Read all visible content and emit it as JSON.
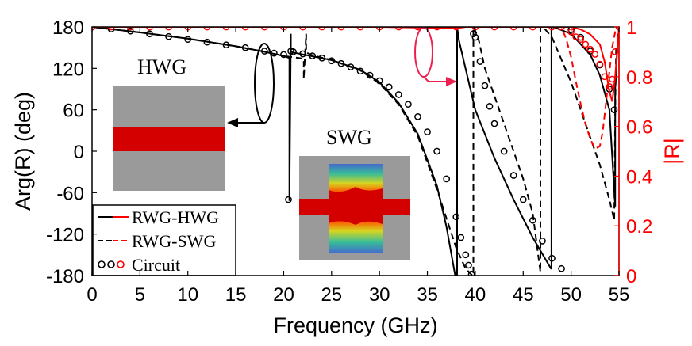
{
  "chart_data": {
    "type": "line",
    "xlabel": "Frequency (GHz)",
    "ylabel_left": "Arg(R) (deg)",
    "ylabel_right": "|R|",
    "xlim": [
      0,
      55
    ],
    "ylim_left": [
      -180,
      180
    ],
    "ylim_right": [
      0,
      1
    ],
    "x_ticks": [
      "0",
      "5",
      "10",
      "15",
      "20",
      "25",
      "30",
      "35",
      "40",
      "45",
      "50",
      "55"
    ],
    "y_ticks_left": [
      "180",
      "120",
      "60",
      "0",
      "-60",
      "-120",
      "-180"
    ],
    "y_ticks_right": [
      "1",
      "0.8",
      "0.6",
      "0.4",
      "0.2",
      "0"
    ],
    "colors": {
      "phase": "#000000",
      "magnitude": "#ff0000",
      "inset_metal": "#9a9a9a",
      "inset_dielectric": "#d40000"
    },
    "legend": [
      {
        "label": "RWG-HWG",
        "style": "solid"
      },
      {
        "label": "RWG-SWG",
        "style": "dashed"
      },
      {
        "label": "Circuit",
        "style": "circles"
      }
    ],
    "annotations": {
      "hwg": "HWG",
      "swg": "SWG"
    },
    "series": [
      {
        "name": "RWG-HWG",
        "axis": "left",
        "style": "solid",
        "color": "#000000",
        "x": [
          0,
          5,
          10,
          15,
          18,
          20,
          20.6,
          20.6,
          20.75,
          20.75,
          21,
          25,
          28,
          30,
          32,
          34,
          36,
          37,
          37.9,
          38.1,
          38.1,
          38.3,
          40,
          42,
          44,
          46,
          47.9,
          47.95,
          47.95,
          48.5,
          50,
          52,
          53,
          54,
          54.6,
          54.6,
          54.9
        ],
        "y": [
          180,
          172,
          163,
          152,
          144,
          138,
          135,
          -72,
          170,
          144,
          143,
          132,
          118,
          100,
          70,
          25,
          -50,
          -110,
          -180,
          -180,
          180,
          160,
          60,
          -10,
          -70,
          -125,
          -170,
          -170,
          180,
          178,
          170,
          140,
          110,
          60,
          -80,
          90,
          170
        ]
      },
      {
        "name": "RWG-SWG",
        "axis": "left",
        "style": "dashed",
        "color": "#000000",
        "x": [
          0,
          5,
          10,
          15,
          18,
          20,
          22.1,
          22.1,
          22.35,
          22.35,
          23,
          25,
          28,
          30,
          32,
          34,
          36,
          38,
          39,
          39.7,
          39.8,
          39.8,
          40.3,
          41,
          43,
          45,
          46,
          46.8,
          46.8,
          47.2,
          48,
          50,
          52,
          53,
          54,
          54.5,
          54.6,
          54.7
        ],
        "y": [
          180,
          172,
          163,
          152,
          144,
          138,
          134,
          105,
          170,
          143,
          139,
          132,
          117,
          98,
          68,
          22,
          -55,
          -140,
          -170,
          -180,
          -180,
          180,
          165,
          120,
          40,
          -40,
          -90,
          -175,
          180,
          178,
          165,
          100,
          20,
          -20,
          -70,
          -100,
          60,
          150
        ]
      },
      {
        "name": "Circuit (phase)",
        "axis": "left",
        "style": "circles",
        "color": "#000000",
        "x": [
          0,
          2,
          4,
          6,
          8,
          10,
          12,
          14,
          16,
          18,
          19,
          20,
          20.5,
          20.75,
          21,
          22,
          23,
          24,
          25,
          26,
          27,
          28,
          29,
          30,
          31,
          32,
          33,
          34,
          35,
          36,
          37,
          38,
          38.5,
          39,
          39.3,
          39.6,
          39.8,
          40,
          40.5,
          41,
          41.5,
          42,
          43,
          44,
          45,
          46,
          47,
          48,
          49,
          50,
          51,
          52,
          53,
          54,
          54.5
        ],
        "y": [
          180,
          177,
          174,
          170,
          166,
          162,
          158,
          154,
          150,
          145,
          142,
          140,
          -70,
          145,
          144,
          141,
          138,
          135,
          131,
          127,
          122,
          116,
          110,
          102,
          93,
          82,
          68,
          50,
          28,
          0,
          -40,
          -95,
          -125,
          -150,
          -165,
          -178,
          170,
          165,
          130,
          95,
          65,
          40,
          0,
          -35,
          -70,
          -100,
          -130,
          -155,
          -170,
          176,
          165,
          145,
          125,
          90,
          60
        ]
      },
      {
        "name": "RWG-HWG |R|",
        "axis": "right",
        "style": "solid",
        "color": "#ff0000",
        "x": [
          0,
          10,
          20,
          30,
          38,
          39,
          40,
          45,
          48,
          50,
          51,
          52,
          53,
          53.5,
          54,
          54.3,
          54.6,
          55
        ],
        "y": [
          1,
          1,
          1,
          1,
          0.995,
          1,
          1,
          1,
          1,
          1,
          0.99,
          0.97,
          0.93,
          0.86,
          0.74,
          0.7,
          0.8,
          1
        ]
      },
      {
        "name": "RWG-SWG |R|",
        "axis": "right",
        "style": "dashed",
        "color": "#ff0000",
        "x": [
          0,
          10,
          20,
          30,
          40,
          45,
          49,
          49.5,
          50,
          50.5,
          51,
          51.5,
          52,
          52.5,
          53,
          53.3,
          53.6,
          54,
          54.3,
          54.6,
          55
        ],
        "y": [
          1,
          1,
          1,
          1,
          1,
          1,
          1,
          0.95,
          0.88,
          0.78,
          0.69,
          0.61,
          0.55,
          0.51,
          0.52,
          0.58,
          0.68,
          0.82,
          0.92,
          0.98,
          1
        ]
      },
      {
        "name": "Circuit |R|",
        "axis": "right",
        "style": "circles",
        "color": "#ff0000",
        "x": [
          0,
          2,
          4,
          6,
          8,
          10,
          12,
          14,
          16,
          18,
          20,
          22,
          24,
          26,
          28,
          30,
          32,
          34,
          36,
          38,
          40,
          42,
          44,
          46,
          48,
          49,
          50,
          50.5,
          51,
          51.5,
          52,
          52.5,
          53,
          53.5,
          54,
          54.3,
          54.6,
          55
        ],
        "y": [
          1,
          1,
          1,
          1,
          1,
          1,
          1,
          1,
          1,
          1,
          1,
          1,
          1,
          1,
          1,
          1,
          1,
          1,
          1,
          1,
          1,
          1,
          1,
          1,
          1,
          1,
          0.98,
          0.96,
          0.95,
          0.93,
          0.91,
          0.89,
          0.85,
          0.8,
          0.76,
          0.79,
          0.9,
          1
        ]
      }
    ]
  }
}
